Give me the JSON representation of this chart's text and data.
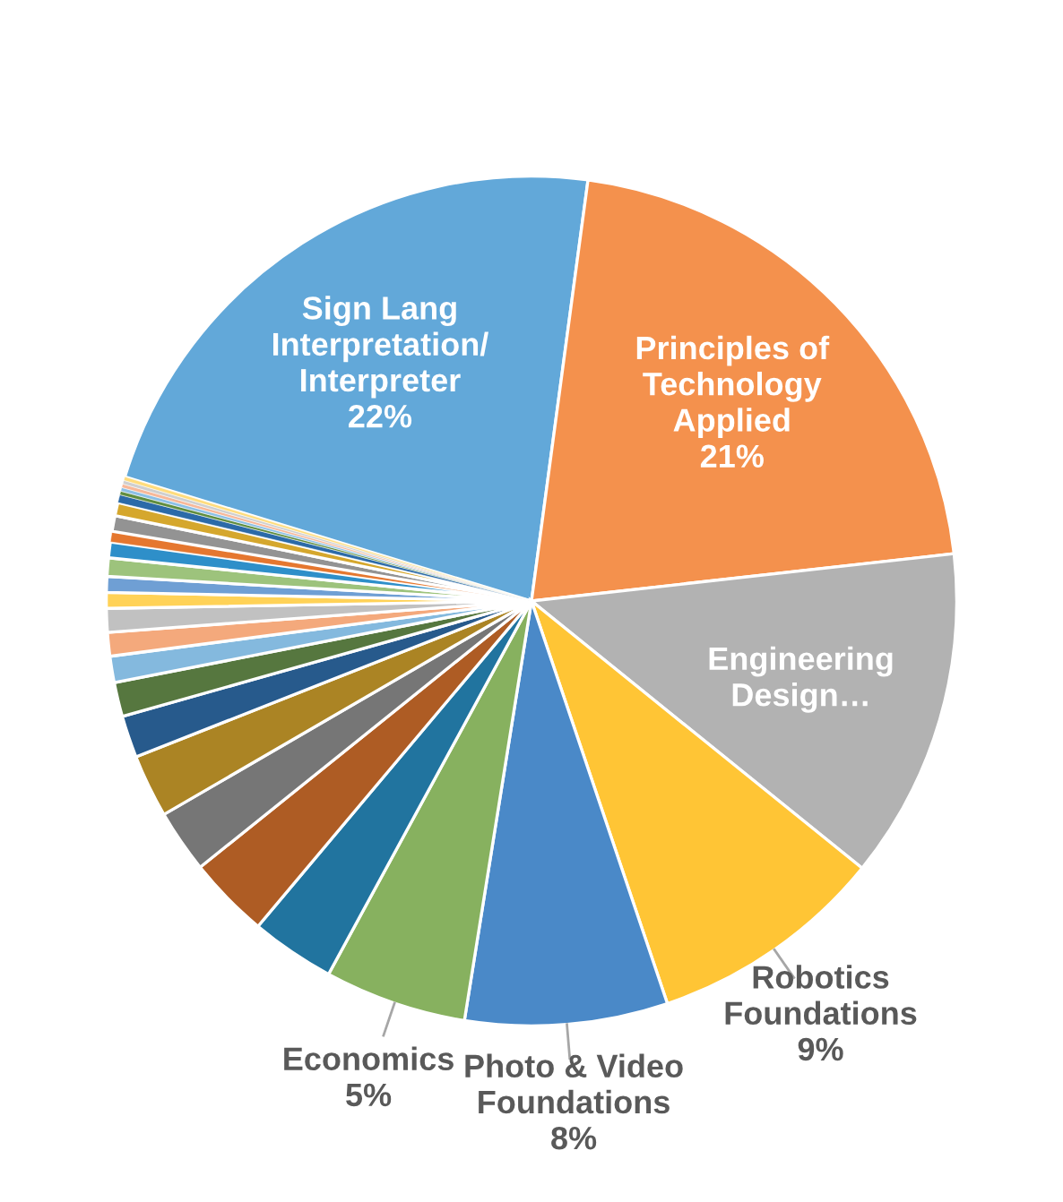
{
  "chart_data": {
    "type": "pie",
    "categories": [
      "Sign Lang\nInterpretation/\nInterpreter",
      "Principles of\nTechnology\nApplied",
      "Engineering\nDesign…",
      "Robotics\nFoundations",
      "Photo & Video\nFoundations",
      "Economics",
      null,
      null,
      null,
      null,
      null,
      null,
      null,
      null,
      null,
      null,
      null,
      null,
      null,
      null,
      null,
      null,
      null,
      null,
      null,
      null,
      null,
      null
    ],
    "values": [
      22.4,
      21.1,
      12.6,
      9.0,
      7.7,
      5.4,
      3.2,
      3.1,
      2.4,
      2.4,
      1.6,
      1.3,
      1.0,
      0.9,
      0.9,
      0.6,
      0.6,
      0.7,
      0.6,
      0.4,
      0.6,
      0.5,
      0.3,
      0.14,
      0.14,
      0.14,
      0.14,
      0.14
    ],
    "value_labels": [
      "22%",
      "21%",
      null,
      "9%",
      "8%",
      "5%",
      null,
      null,
      null,
      null,
      null,
      null,
      null,
      null,
      null,
      null,
      null,
      null,
      null,
      null,
      null,
      null,
      null,
      null,
      null,
      null,
      null,
      null
    ],
    "colors": [
      "#62a8d9",
      "#f4914d",
      "#b2b2b2",
      "#ffc535",
      "#4a89c8",
      "#87b15f",
      "#21749f",
      "#ae5c24",
      "#767676",
      "#ab8424",
      "#275a8c",
      "#56773f",
      "#84b9de",
      "#f4a97c",
      "#c1c1c1",
      "#ffd257",
      "#6f9fd4",
      "#9dc37c",
      "#2e8fc9",
      "#e5772f",
      "#939393",
      "#d5a72d",
      "#2b6aa8",
      "#5f8d3f",
      "#8cc0e6",
      "#f7b899",
      "#cfcfcf",
      "#ffdc7c"
    ],
    "legend": false
  }
}
